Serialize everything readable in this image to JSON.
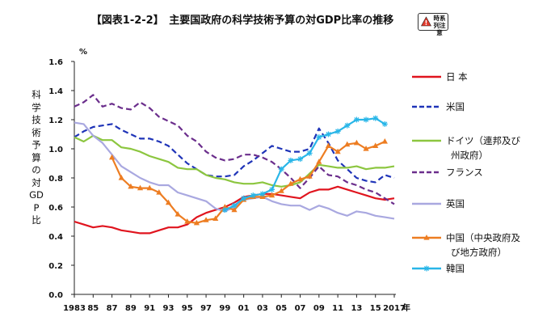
{
  "chart_data": {
    "type": "line",
    "title": "【図表1-2-2】　主要国政府の科学技術予算の対GDP比率の推移",
    "badge": "時系列注意",
    "ylabel": "科学技術予算の対GDP比",
    "yunit": "%",
    "xlabel": "年",
    "ylim": [
      0,
      1.6
    ],
    "yticks": [
      "0.0",
      "0.2",
      "0.4",
      "0.6",
      "0.8",
      "1.0",
      "1.2",
      "1.4",
      "1.6"
    ],
    "xlim": [
      1983,
      2017
    ],
    "xticks": [
      "1983",
      "85",
      "87",
      "89",
      "91",
      "93",
      "95",
      "97",
      "99",
      "01",
      "03",
      "05",
      "07",
      "09",
      "11",
      "13",
      "15",
      "2017"
    ],
    "x": [
      1983,
      1984,
      1985,
      1986,
      1987,
      1988,
      1989,
      1990,
      1991,
      1992,
      1993,
      1994,
      1995,
      1996,
      1997,
      1998,
      1999,
      2000,
      2001,
      2002,
      2003,
      2004,
      2005,
      2006,
      2007,
      2008,
      2009,
      2010,
      2011,
      2012,
      2013,
      2014,
      2015,
      2016,
      2017
    ],
    "series": [
      {
        "name": "日 本",
        "color": "#e0141e",
        "dash": "solid",
        "marker": "none",
        "values": [
          0.5,
          0.48,
          0.46,
          0.47,
          0.46,
          0.44,
          0.43,
          0.42,
          0.42,
          0.44,
          0.46,
          0.46,
          0.48,
          0.53,
          0.56,
          0.58,
          0.6,
          0.63,
          0.67,
          0.68,
          0.69,
          0.69,
          0.68,
          0.67,
          0.66,
          0.7,
          0.72,
          0.72,
          0.74,
          0.72,
          0.7,
          0.68,
          0.66,
          0.65,
          0.66
        ]
      },
      {
        "name": "米国",
        "color": "#1f34b8",
        "dash": "dashed",
        "marker": "none",
        "values": [
          1.08,
          1.12,
          1.15,
          1.16,
          1.17,
          1.13,
          1.1,
          1.07,
          1.07,
          1.05,
          1.02,
          0.96,
          0.9,
          0.86,
          0.82,
          0.81,
          0.81,
          0.82,
          0.88,
          0.92,
          0.97,
          1.02,
          1.0,
          0.98,
          0.98,
          1.0,
          1.14,
          1.04,
          0.92,
          0.86,
          0.8,
          0.78,
          0.77,
          0.82,
          0.8
        ]
      },
      {
        "name": "ドイツ（連邦及び州政府）",
        "color": "#8cc63f",
        "dash": "solid",
        "marker": "none",
        "values": [
          1.08,
          1.05,
          1.09,
          1.06,
          1.06,
          1.01,
          1.0,
          0.98,
          0.95,
          0.93,
          0.91,
          0.87,
          0.86,
          0.86,
          0.82,
          0.8,
          0.79,
          0.77,
          0.76,
          0.76,
          0.77,
          0.75,
          0.74,
          0.75,
          0.77,
          0.83,
          0.89,
          0.88,
          0.87,
          0.87,
          0.88,
          0.86,
          0.87,
          0.87,
          0.88
        ]
      },
      {
        "name": "フランス",
        "color": "#6b2e8c",
        "dash": "dashed",
        "marker": "none",
        "values": [
          1.29,
          1.32,
          1.37,
          1.29,
          1.31,
          1.28,
          1.27,
          1.32,
          1.28,
          1.22,
          1.19,
          1.16,
          1.09,
          1.05,
          0.98,
          0.94,
          0.92,
          0.93,
          0.96,
          0.96,
          0.94,
          0.91,
          0.86,
          0.8,
          0.73,
          0.8,
          0.88,
          0.82,
          0.81,
          0.77,
          0.75,
          0.72,
          0.7,
          0.66,
          0.62
        ]
      },
      {
        "name": "英国",
        "color": "#a9a8e0",
        "dash": "solid",
        "marker": "none",
        "values": [
          1.18,
          1.17,
          1.09,
          1.04,
          0.96,
          0.88,
          0.84,
          0.8,
          0.77,
          0.75,
          0.75,
          0.7,
          0.68,
          0.66,
          0.64,
          0.59,
          0.57,
          0.6,
          0.65,
          0.66,
          0.67,
          0.64,
          0.62,
          0.61,
          0.61,
          0.58,
          0.61,
          0.59,
          0.56,
          0.54,
          0.57,
          0.56,
          0.54,
          0.53,
          0.52
        ]
      },
      {
        "name": "中国（中央政府及び地方政府）",
        "color": "#ed7d22",
        "dash": "solid",
        "marker": "triangle",
        "values": [
          null,
          null,
          null,
          null,
          0.94,
          0.8,
          0.74,
          0.73,
          0.73,
          0.7,
          0.63,
          0.55,
          0.5,
          0.49,
          0.51,
          0.52,
          0.6,
          0.58,
          0.65,
          0.67,
          0.67,
          0.68,
          0.71,
          0.76,
          0.79,
          0.81,
          0.91,
          1.02,
          0.98,
          1.03,
          1.04,
          1.0,
          1.02,
          1.05,
          null
        ]
      },
      {
        "name": "韓国",
        "color": "#29b6e8",
        "dash": "solid",
        "marker": "asterisk",
        "values": [
          null,
          null,
          null,
          null,
          null,
          null,
          null,
          null,
          null,
          null,
          null,
          null,
          null,
          null,
          null,
          null,
          0.58,
          0.61,
          0.66,
          0.68,
          0.69,
          0.72,
          0.86,
          0.92,
          0.93,
          0.97,
          1.08,
          1.1,
          1.12,
          1.16,
          1.2,
          1.2,
          1.21,
          1.17,
          null
        ]
      }
    ]
  }
}
